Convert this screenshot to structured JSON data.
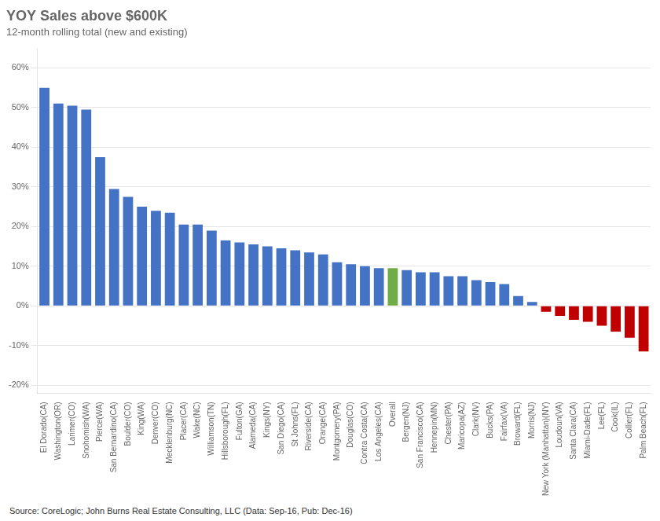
{
  "chart_data": {
    "type": "bar",
    "title": "YOY Sales above $600K",
    "subtitle": "12-month rolling total (new and existing)",
    "source": "Source: CoreLogic; John Burns Real Estate Consulting, LLC (Data: Sep-16, Pub: Dec-16)",
    "categories": [
      "El Dorado(CA)",
      "Washington(OR)",
      "Larimer(CO)",
      "Snohomish(WA)",
      "Pierce(WA)",
      "San Bernardino(CA)",
      "Boulder(CO)",
      "King(WA)",
      "Denver(CO)",
      "Mecklenburg(NC)",
      "Placer(CA)",
      "Wake(NC)",
      "Williamson(TN)",
      "Hillsborough(FL)",
      "Fulton(GA)",
      "Alameda(CA)",
      "Kings(NY)",
      "San Diego(CA)",
      "St Johns(FL)",
      "Riverside(CA)",
      "Orange(CA)",
      "Montgomery(PA)",
      "Douglas(CO)",
      "Contra Costa(CA)",
      "Los Angeles(CA)",
      "Overall",
      "Bergen(NJ)",
      "San Francisco(CA)",
      "Hennepin(MN)",
      "Chester(PA)",
      "Maricopa(AZ)",
      "Clark(NV)",
      "Bucks(PA)",
      "Fairfax(VA)",
      "Broward(FL)",
      "Morris(NJ)",
      "New York (Manhattan)(NY)",
      "Loudoun(VA)",
      "Santa Clara(CA)",
      "Miami-Dade(FL)",
      "Lee(FL)",
      "Cook(IL)",
      "Collier(FL)",
      "Palm Beach(FL)"
    ],
    "values": [
      55.0,
      51.0,
      50.5,
      49.5,
      37.5,
      29.5,
      27.5,
      25.0,
      24.0,
      23.5,
      20.5,
      20.5,
      19.0,
      16.5,
      16.0,
      15.5,
      15.0,
      14.5,
      14.0,
      13.5,
      13.0,
      11.0,
      10.5,
      10.0,
      9.5,
      9.5,
      9.0,
      8.5,
      8.5,
      7.5,
      7.5,
      6.5,
      6.0,
      5.5,
      2.5,
      1.0,
      -1.5,
      -2.5,
      -3.5,
      -4.0,
      -5.0,
      -6.5,
      -8.0,
      -11.5
    ],
    "colors": [
      "#4472C4",
      "#4472C4",
      "#4472C4",
      "#4472C4",
      "#4472C4",
      "#4472C4",
      "#4472C4",
      "#4472C4",
      "#4472C4",
      "#4472C4",
      "#4472C4",
      "#4472C4",
      "#4472C4",
      "#4472C4",
      "#4472C4",
      "#4472C4",
      "#4472C4",
      "#4472C4",
      "#4472C4",
      "#4472C4",
      "#4472C4",
      "#4472C4",
      "#4472C4",
      "#4472C4",
      "#4472C4",
      "#70AD47",
      "#4472C4",
      "#4472C4",
      "#4472C4",
      "#4472C4",
      "#4472C4",
      "#4472C4",
      "#4472C4",
      "#4472C4",
      "#4472C4",
      "#4472C4",
      "#C00000",
      "#C00000",
      "#C00000",
      "#C00000",
      "#C00000",
      "#C00000",
      "#C00000",
      "#C00000"
    ],
    "ylim": [
      -22,
      65
    ],
    "yticks": [
      {
        "value": -20,
        "label": "-20%"
      },
      {
        "value": -10,
        "label": "-10%"
      },
      {
        "value": 0,
        "label": "0%"
      },
      {
        "value": 10,
        "label": "10%"
      },
      {
        "value": 20,
        "label": "20%"
      },
      {
        "value": 30,
        "label": "30%"
      },
      {
        "value": 40,
        "label": "40%"
      },
      {
        "value": 50,
        "label": "50%"
      },
      {
        "value": 60,
        "label": "60%"
      }
    ],
    "grid": true
  }
}
